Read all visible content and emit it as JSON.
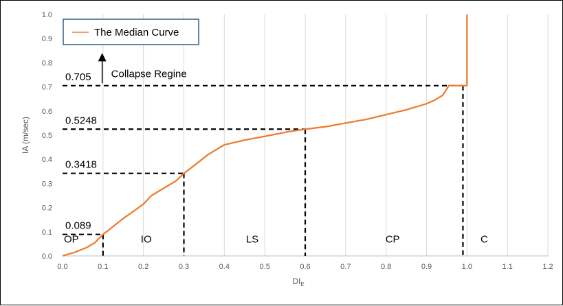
{
  "chart_data": {
    "type": "line",
    "xlabel": "DI",
    "xlabel_subscript": "E",
    "ylabel": "IA (m/sec)",
    "xlim": [
      0,
      1.2
    ],
    "ylim": [
      0,
      1.0
    ],
    "xticks": [
      "0.0",
      "0.1",
      "0.2",
      "0.3",
      "0.4",
      "0.5",
      "0.6",
      "0.7",
      "0.8",
      "0.9",
      "1.0",
      "1.1",
      "1.2"
    ],
    "yticks": [
      "0.0",
      "0.1",
      "0.2",
      "0.3",
      "0.4",
      "0.5",
      "0.6",
      "0.7",
      "0.8",
      "0.9",
      "1.0"
    ],
    "grid": "vertical",
    "legend": {
      "position": "top-left",
      "entries": [
        "The Median Curve"
      ]
    },
    "series": [
      {
        "name": "The Median Curve",
        "color": "#ed7d31",
        "points": [
          [
            0.0,
            0.0
          ],
          [
            0.03,
            0.015
          ],
          [
            0.06,
            0.035
          ],
          [
            0.08,
            0.055
          ],
          [
            0.1,
            0.089
          ],
          [
            0.12,
            0.115
          ],
          [
            0.15,
            0.155
          ],
          [
            0.18,
            0.19
          ],
          [
            0.2,
            0.215
          ],
          [
            0.22,
            0.25
          ],
          [
            0.25,
            0.28
          ],
          [
            0.28,
            0.31
          ],
          [
            0.3,
            0.3418
          ],
          [
            0.33,
            0.38
          ],
          [
            0.36,
            0.42
          ],
          [
            0.38,
            0.44
          ],
          [
            0.4,
            0.46
          ],
          [
            0.43,
            0.472
          ],
          [
            0.46,
            0.483
          ],
          [
            0.5,
            0.495
          ],
          [
            0.53,
            0.505
          ],
          [
            0.56,
            0.515
          ],
          [
            0.6,
            0.5248
          ],
          [
            0.65,
            0.535
          ],
          [
            0.7,
            0.55
          ],
          [
            0.75,
            0.565
          ],
          [
            0.8,
            0.585
          ],
          [
            0.85,
            0.605
          ],
          [
            0.9,
            0.63
          ],
          [
            0.92,
            0.645
          ],
          [
            0.94,
            0.665
          ],
          [
            0.955,
            0.705
          ],
          [
            0.99,
            0.705
          ],
          [
            1.0,
            0.705
          ],
          [
            1.0,
            1.0
          ]
        ]
      }
    ],
    "reference_lines": [
      {
        "x": 0.1,
        "y": 0.089,
        "label": "0.089"
      },
      {
        "x": 0.3,
        "y": 0.3418,
        "label": "0.3418"
      },
      {
        "x": 0.6,
        "y": 0.5248,
        "label": "0.5248"
      },
      {
        "x": 0.99,
        "y": 0.705,
        "label": "0.705"
      }
    ],
    "zones": [
      {
        "label": "OP",
        "x": 0.0,
        "y": 0.055
      },
      {
        "label": "IO",
        "x": 0.19,
        "y": 0.055
      },
      {
        "label": "LS",
        "x": 0.45,
        "y": 0.055
      },
      {
        "label": "CP",
        "x": 0.795,
        "y": 0.055
      },
      {
        "label": "C",
        "x": 1.03,
        "y": 0.055
      }
    ],
    "annotation": {
      "text": "Collapse Regine",
      "arrow": "up",
      "x": 0.115,
      "y": 0.84
    }
  }
}
